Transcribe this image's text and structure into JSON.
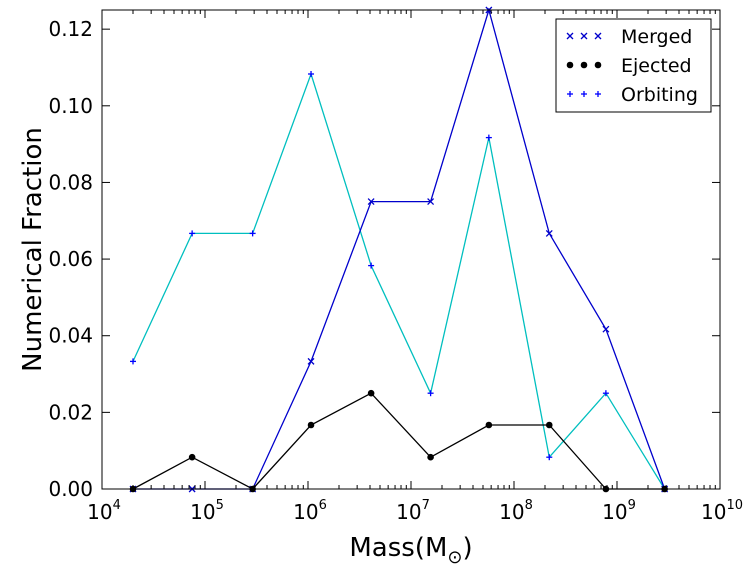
{
  "chart_data": {
    "type": "line",
    "xlabel": "Mass(M",
    "xlabel_sub": "⊙",
    "xlabel_close": ")",
    "ylabel": "Numerical Fraction",
    "xscale": "log",
    "xlim": [
      10000,
      10000000000
    ],
    "ylim": [
      0,
      0.125
    ],
    "x_ticks": [
      {
        "base": "10",
        "exp": "4",
        "value": 10000
      },
      {
        "base": "10",
        "exp": "5",
        "value": 100000
      },
      {
        "base": "10",
        "exp": "6",
        "value": 1000000
      },
      {
        "base": "10",
        "exp": "7",
        "value": 10000000
      },
      {
        "base": "10",
        "exp": "8",
        "value": 100000000
      },
      {
        "base": "10",
        "exp": "9",
        "value": 1000000000
      },
      {
        "base": "10",
        "exp": "10",
        "value": 10000000000
      }
    ],
    "y_ticks": [
      "0.00",
      "0.02",
      "0.04",
      "0.06",
      "0.08",
      "0.10",
      "0.12"
    ],
    "grid": false,
    "legend_position": "top-right",
    "series": [
      {
        "name": "Merged",
        "color": "#0000cc",
        "marker": "x",
        "x": [
          20000,
          75000,
          290000,
          1070000,
          4100000,
          15500000,
          57000000,
          220000000,
          780000000,
          2900000000
        ],
        "y": [
          0.0,
          0.0,
          0.0,
          0.0333,
          0.075,
          0.075,
          0.125,
          0.0667,
          0.0417,
          0.0
        ]
      },
      {
        "name": "Ejected",
        "color": "#000000",
        "marker": "o",
        "x": [
          20000,
          75000,
          290000,
          1070000,
          4100000,
          15500000,
          57000000,
          220000000,
          780000000,
          2900000000
        ],
        "y": [
          0.0,
          0.0083,
          0.0,
          0.0167,
          0.025,
          0.0083,
          0.0167,
          0.0167,
          0.0,
          0.0
        ]
      },
      {
        "name": "Orbiting",
        "color": "#00bfbf",
        "marker": "+",
        "marker_color": "#0000ff",
        "x": [
          20000,
          75000,
          290000,
          1070000,
          4100000,
          15500000,
          57000000,
          220000000,
          780000000,
          2900000000
        ],
        "y": [
          0.0333,
          0.0667,
          0.0667,
          0.1083,
          0.0583,
          0.025,
          0.0917,
          0.0083,
          0.025,
          0.0
        ]
      }
    ]
  }
}
